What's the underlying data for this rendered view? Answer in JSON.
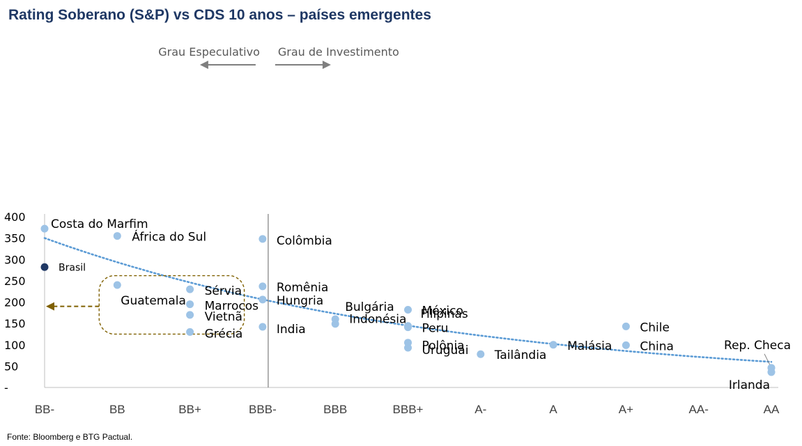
{
  "title": "Rating Soberano (S&P) vs CDS 10 anos – países emergentes",
  "source": "Fonte: Bloomberg e BTG Pactual.",
  "colors": {
    "title": "#1f3864",
    "point": "#9dc3e6",
    "highlight": "#1f3864",
    "trendline": "#5b9bd5",
    "box": "#7f6000",
    "divider": "#7f7f7f"
  },
  "chart_data": {
    "type": "scatter",
    "categories": [
      "BB-",
      "BB",
      "BB+",
      "BBB-",
      "BBB",
      "BBB+",
      "A-",
      "A",
      "A+",
      "AA-",
      "AA"
    ],
    "ylim": [
      0,
      400
    ],
    "yticks": [
      {
        "value": 0,
        "label": "-"
      },
      {
        "value": 50,
        "label": "50"
      },
      {
        "value": 100,
        "label": "100"
      },
      {
        "value": 150,
        "label": "150"
      },
      {
        "value": 200,
        "label": "200"
      },
      {
        "value": 250,
        "label": "250"
      },
      {
        "value": 300,
        "label": "300"
      },
      {
        "value": 350,
        "label": "350"
      },
      {
        "value": 400,
        "label": "400"
      }
    ],
    "grid": false,
    "points": [
      {
        "name": "Costa do Marfim",
        "x": "BB-",
        "y": 372
      },
      {
        "name": "Brasil",
        "x": "BB-",
        "y": 282,
        "highlight": true
      },
      {
        "name": "África do Sul",
        "x": "BB",
        "y": 355
      },
      {
        "name": "Guatemala",
        "x": "BB",
        "y": 240
      },
      {
        "name": "Sérvia",
        "x": "BB+",
        "y": 230
      },
      {
        "name": "Marrocos",
        "x": "BB+",
        "y": 195
      },
      {
        "name": "Vietnã",
        "x": "BB+",
        "y": 170
      },
      {
        "name": "Grécia",
        "x": "BB+",
        "y": 130
      },
      {
        "name": "Colômbia",
        "x": "BBB-",
        "y": 348
      },
      {
        "name": "Romênia",
        "x": "BBB-",
        "y": 237
      },
      {
        "name": "Hungria",
        "x": "BBB-",
        "y": 206
      },
      {
        "name": "India",
        "x": "BBB-",
        "y": 142
      },
      {
        "name": "Bulgária",
        "x": "BBB",
        "y": 160
      },
      {
        "name": "Indonésia",
        "x": "BBB",
        "y": 149
      },
      {
        "name": "México",
        "x": "BBB+",
        "y": 182
      },
      {
        "name": "Filipinas",
        "x": "BBB+",
        "y": 144
      },
      {
        "name": "Peru",
        "x": "BBB+",
        "y": 141
      },
      {
        "name": "Polônia",
        "x": "BBB+",
        "y": 105
      },
      {
        "name": "Uruguai",
        "x": "BBB+",
        "y": 93
      },
      {
        "name": "Tailândia",
        "x": "A-",
        "y": 78
      },
      {
        "name": "Malásia",
        "x": "A",
        "y": 100
      },
      {
        "name": "Chile",
        "x": "A+",
        "y": 143
      },
      {
        "name": "China",
        "x": "A+",
        "y": 99
      },
      {
        "name": "Rep. Checa",
        "x": "AA",
        "y": 46
      },
      {
        "name": "Irlanda",
        "x": "AA",
        "y": 36
      }
    ],
    "trendline": {
      "type": "exponential",
      "start": 350,
      "end": 60
    },
    "annotations": {
      "speculative": "Grau Especulativo",
      "investment": "Grau de Investimento",
      "divider_at": "BBB-",
      "box_range": {
        "x": [
          "BB",
          "BB+"
        ],
        "y": [
          125,
          262
        ],
        "arrow_to_y": 190
      }
    }
  }
}
